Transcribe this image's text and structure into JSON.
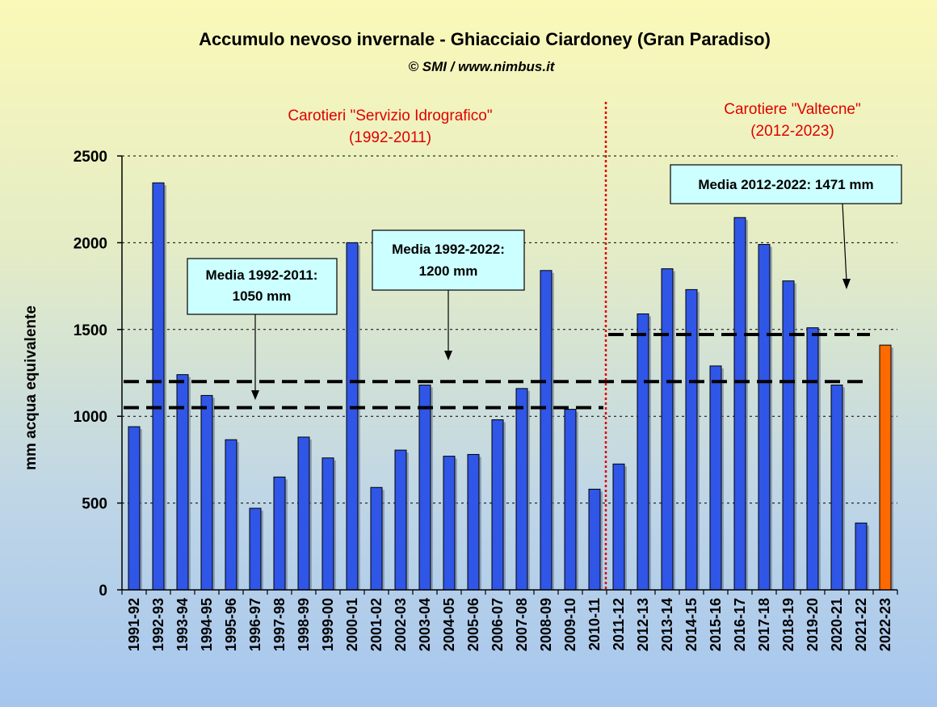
{
  "chart_data": {
    "type": "bar",
    "title": "Accumulo nevoso invernale - Ghiacciaio Ciardoney (Gran Paradiso)",
    "subtitle": "© SMI / www.nimbus.it",
    "ylabel": "mm acqua equivalente",
    "xlabel": "",
    "ylim": [
      0,
      2500
    ],
    "yticks": [
      0,
      500,
      1000,
      1500,
      2000,
      2500
    ],
    "grid": "horizontal dotted",
    "categories": [
      "1991-92",
      "1992-93",
      "1993-94",
      "1994-95",
      "1995-96",
      "1996-97",
      "1997-98",
      "1998-99",
      "1999-00",
      "2000-01",
      "2001-02",
      "2002-03",
      "2003-04",
      "2004-05",
      "2005-06",
      "2006-07",
      "2007-08",
      "2008-09",
      "2009-10",
      "2010-11",
      "2011-12",
      "2012-13",
      "2013-14",
      "2014-15",
      "2015-16",
      "2016-17",
      "2017-18",
      "2018-19",
      "2019-20",
      "2020-21",
      "2021-22",
      "2022-23"
    ],
    "values": [
      940,
      2345,
      1240,
      1120,
      865,
      470,
      650,
      880,
      760,
      2000,
      590,
      805,
      1180,
      770,
      780,
      980,
      1160,
      1840,
      1040,
      580,
      725,
      1590,
      1850,
      1730,
      1290,
      2145,
      1990,
      1780,
      1510,
      1180,
      385,
      1410
    ],
    "colors": {
      "bar": "#2f56e6",
      "bar_highlight": "#ff6a00",
      "highlight_category": "2022-23",
      "divider": "#e00000"
    },
    "mean_lines": [
      {
        "value": 1050,
        "from": "1991-92",
        "to": "2010-11"
      },
      {
        "value": 1200,
        "from": "1991-92",
        "to": "2021-22"
      },
      {
        "value": 1471,
        "from": "2011-12",
        "to": "2021-22"
      }
    ],
    "period_labels": [
      {
        "line1": "Carotieri \"Servizio Idrografico\"",
        "line2": "(1992-2011)"
      },
      {
        "line1": "Carotiere \"Valtecne\"",
        "line2": "(2012-2023)"
      }
    ],
    "annotations": [
      {
        "line1": "Media 1992-2011:",
        "line2": "1050 mm"
      },
      {
        "line1": "Media 1992-2022:",
        "line2": "1200 mm"
      },
      {
        "line1": "Media 2012-2022: 1471 mm",
        "line2": ""
      }
    ]
  }
}
